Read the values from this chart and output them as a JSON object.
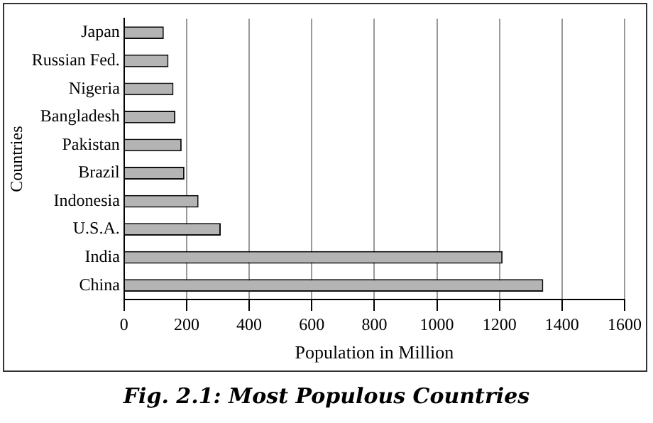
{
  "chart_data": {
    "type": "bar",
    "orientation": "horizontal",
    "title": "Fig. 2.1: Most Populous Countries",
    "xlabel": "Population in Million",
    "ylabel": "Countries",
    "categories": [
      "Japan",
      "Russian Fed.",
      "Nigeria",
      "Bangladesh",
      "Pakistan",
      "Brazil",
      "Indonesia",
      "U.S.A.",
      "India",
      "China"
    ],
    "values": [
      127,
      142,
      158,
      164,
      184,
      193,
      238,
      309,
      1210,
      1340
    ],
    "color": "#b4b4b4",
    "xlim": [
      0,
      1600
    ],
    "xticks": [
      0,
      200,
      400,
      600,
      800,
      1000,
      1200,
      1400,
      1600
    ],
    "grid": "x"
  }
}
